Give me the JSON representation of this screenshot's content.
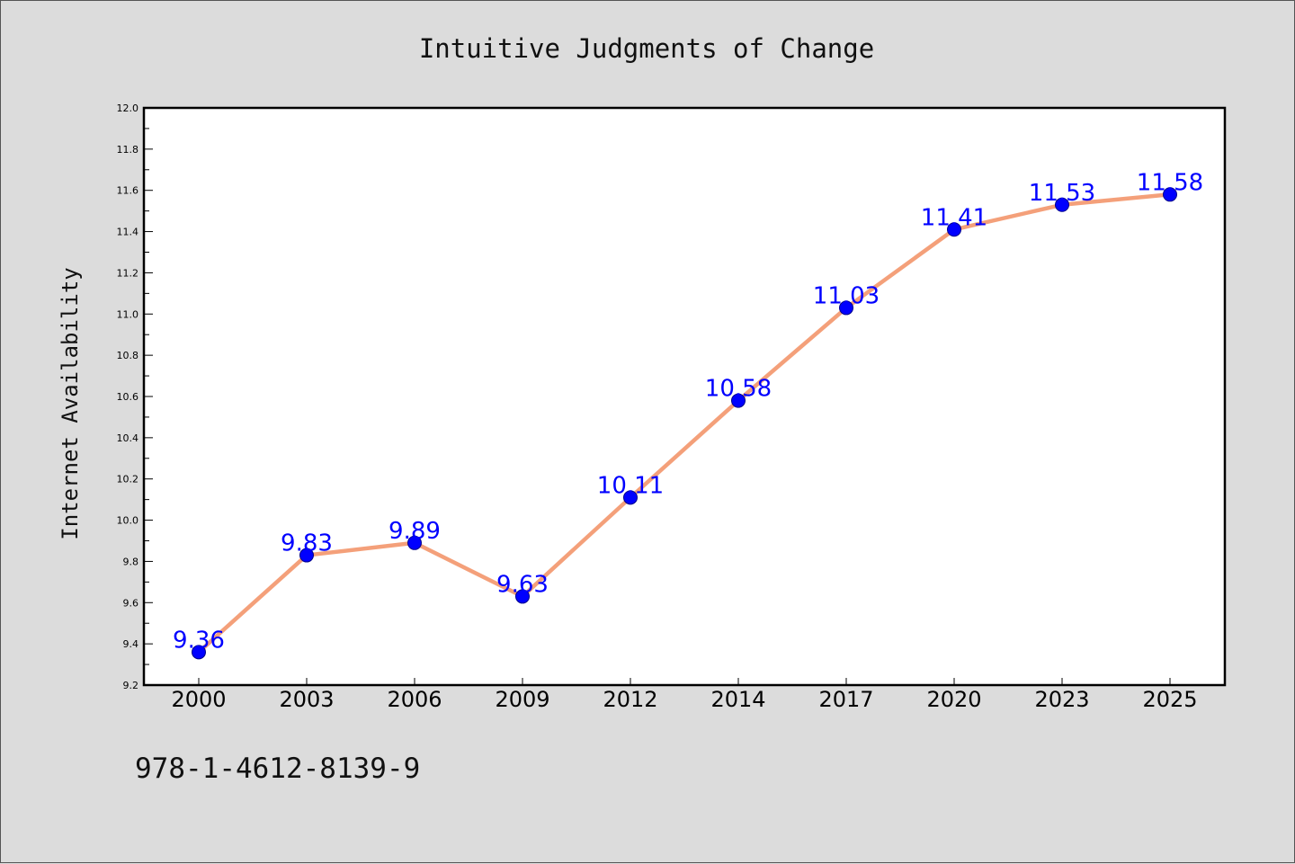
{
  "chart_data": {
    "type": "line",
    "title": "Intuitive Judgments of Change",
    "xlabel": "",
    "ylabel": "Internet Availability",
    "categories": [
      "2000",
      "2003",
      "2006",
      "2009",
      "2012",
      "2014",
      "2017",
      "2020",
      "2023",
      "2025"
    ],
    "series": [
      {
        "values": [
          9.36,
          9.83,
          9.89,
          9.63,
          10.11,
          10.58,
          11.03,
          11.41,
          11.53,
          11.58
        ],
        "labels": [
          "9.36",
          "9.83",
          "9.89",
          "9.63",
          "10.11",
          "10.58",
          "11.03",
          "11.41",
          "11.53",
          "11.58"
        ]
      }
    ],
    "ylim": [
      9.2,
      12.0
    ],
    "yticks": [
      "9.2",
      "9.4",
      "9.6",
      "9.8",
      "10.0",
      "10.2",
      "10.4",
      "10.6",
      "10.8",
      "11.0",
      "11.2",
      "11.4",
      "11.6",
      "11.8",
      "12.0"
    ],
    "grid": false,
    "legend": "none",
    "colors": {
      "line": "#f4a07a",
      "marker": "#0000ff",
      "marker_edge": "#00008b",
      "data_label": "#0000ff",
      "background": "#dcdcdc",
      "plot_area": "#ffffff"
    }
  },
  "footer": {
    "text": "978-1-4612-8139-9"
  }
}
